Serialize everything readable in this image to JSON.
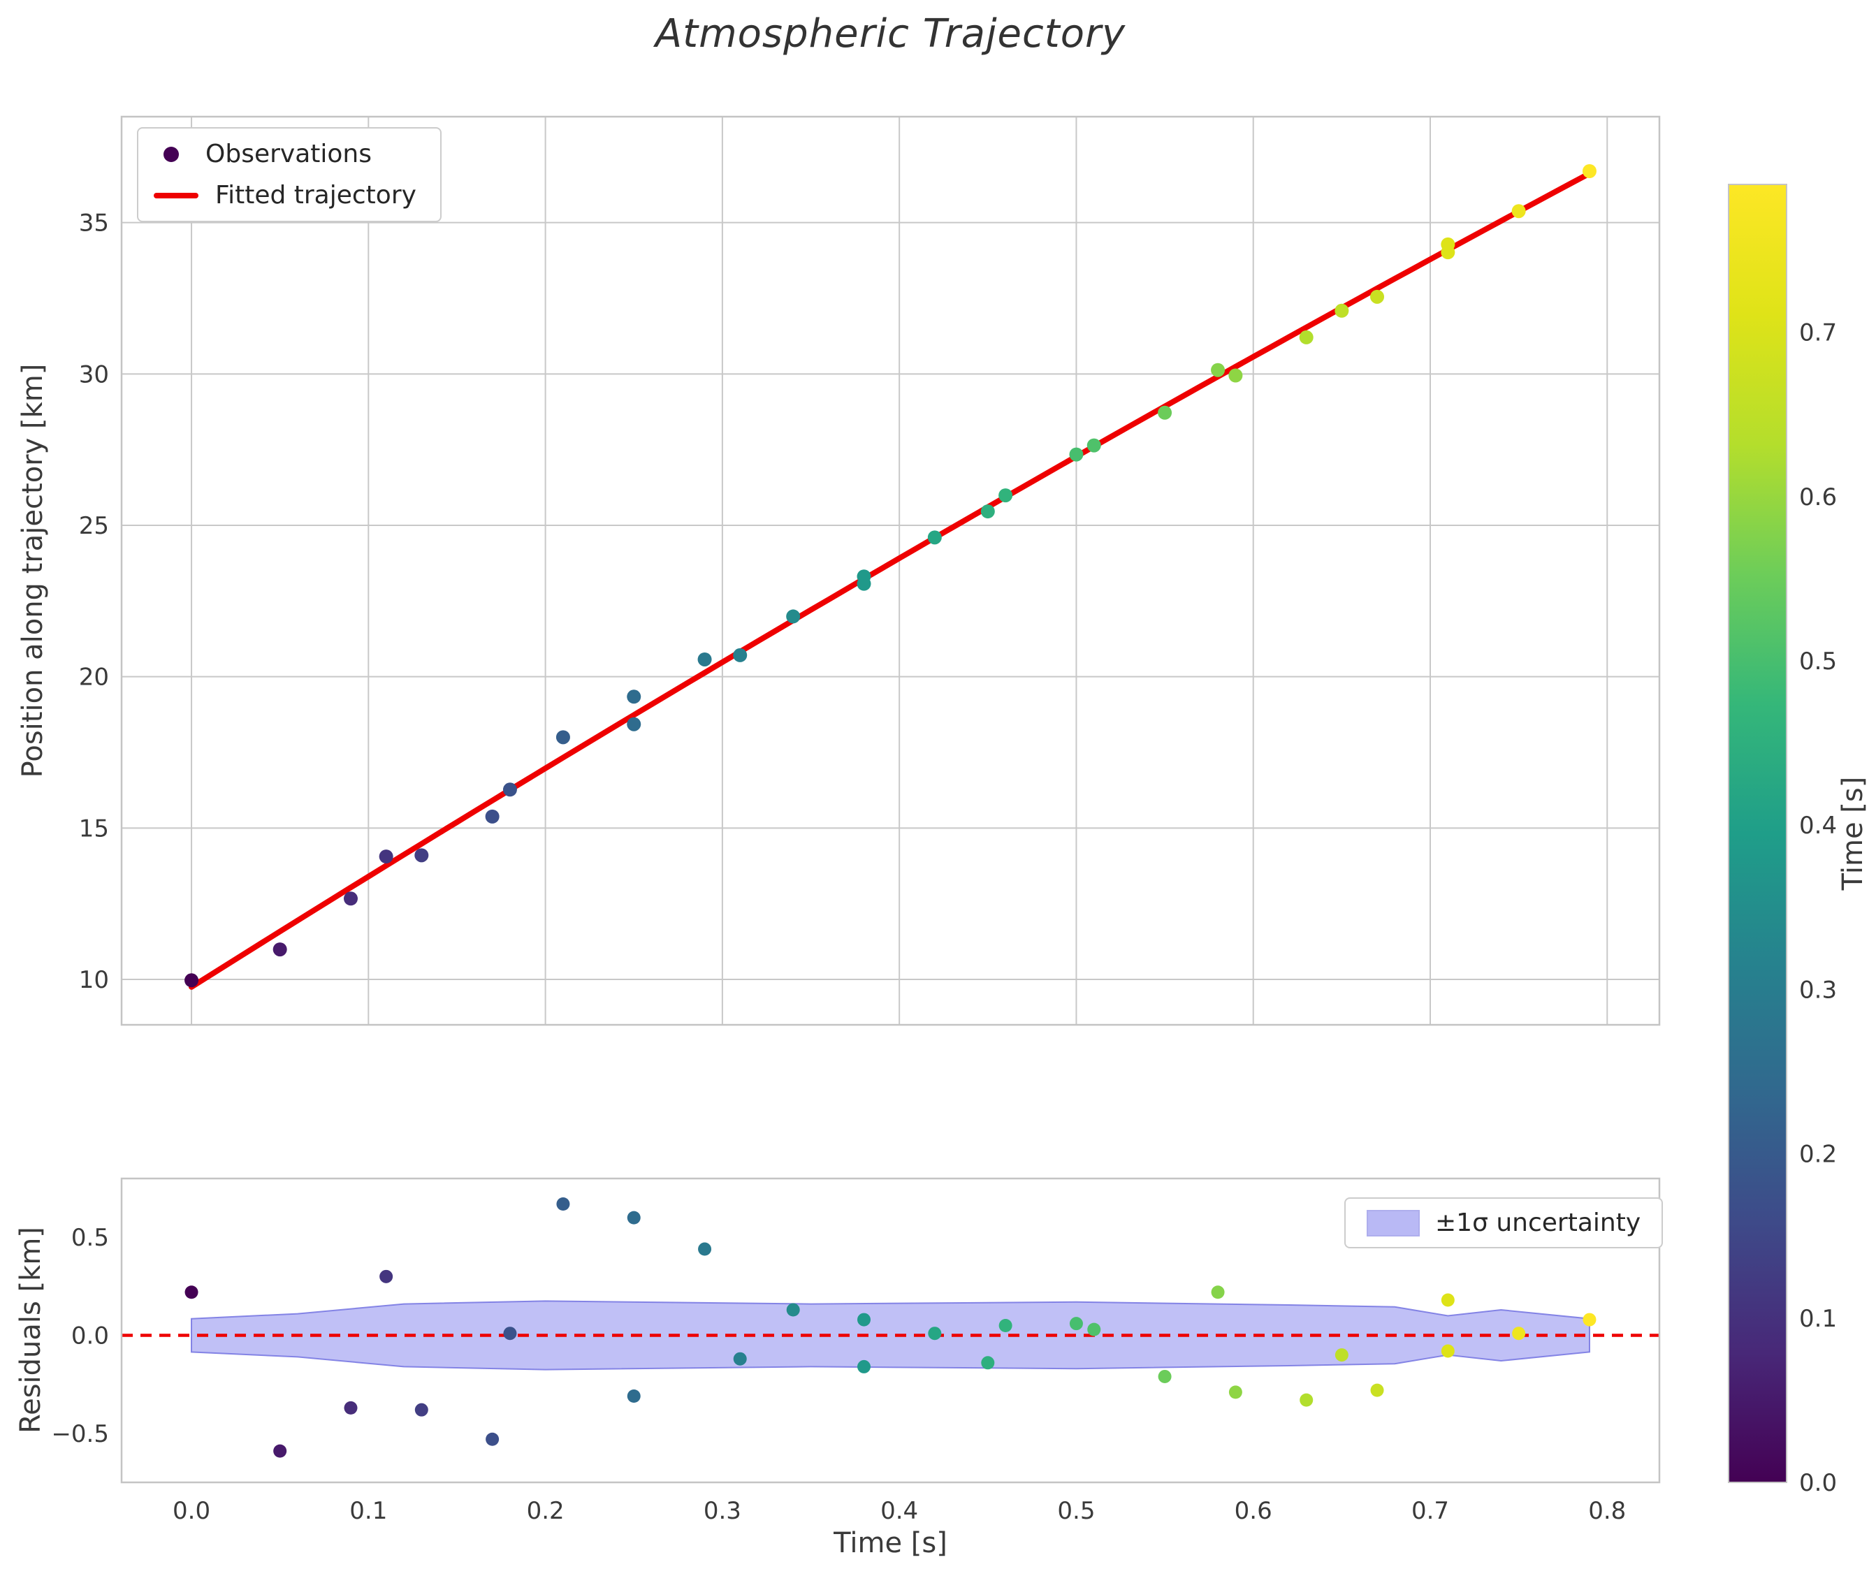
{
  "figure": {
    "title": "Atmospheric Trajectory"
  },
  "chart_data": {
    "type": "scatter",
    "title": "Atmospheric Trajectory",
    "xlabel": "Time [s]",
    "ylabel_main": "Position along trajectory [km]",
    "ylabel_residual": "Residuals [km]",
    "colorbar_label": "Time [s]",
    "series": {
      "observations": {
        "name": "Observations",
        "t": [
          0.0,
          0.05,
          0.09,
          0.11,
          0.13,
          0.17,
          0.18,
          0.21,
          0.25,
          0.25,
          0.29,
          0.31,
          0.34,
          0.38,
          0.38,
          0.42,
          0.45,
          0.46,
          0.5,
          0.51,
          0.55,
          0.58,
          0.59,
          0.63,
          0.65,
          0.67,
          0.71,
          0.71,
          0.75,
          0.79
        ],
        "position": [
          9.97,
          10.99,
          12.67,
          14.06,
          14.1,
          15.38,
          16.27,
          18.0,
          19.34,
          18.43,
          20.57,
          20.71,
          21.99,
          23.31,
          23.07,
          24.6,
          25.46,
          25.99,
          27.34,
          27.64,
          28.72,
          30.13,
          29.95,
          31.21,
          32.09,
          32.55,
          34.28,
          34.02,
          35.38,
          36.7
        ]
      },
      "residuals": {
        "values": [
          0.22,
          -0.59,
          -0.37,
          0.3,
          -0.38,
          -0.53,
          0.01,
          0.67,
          0.6,
          -0.31,
          0.44,
          -0.12,
          0.13,
          0.08,
          -0.16,
          0.01,
          -0.14,
          0.05,
          0.06,
          0.03,
          -0.21,
          0.22,
          -0.29,
          -0.33,
          -0.1,
          -0.28,
          0.18,
          -0.08,
          0.01,
          0.08
        ]
      },
      "fit": {
        "name": "Fitted trajectory",
        "intercept": 9.75,
        "linear": 36.83,
        "quadratic": -3.56,
        "t_start": 0.0,
        "t_end": 0.79
      },
      "uncertainty_band": {
        "name": "±1σ uncertainty",
        "t": [
          0.0,
          0.06,
          0.12,
          0.2,
          0.35,
          0.5,
          0.62,
          0.68,
          0.71,
          0.74,
          0.79
        ],
        "halfwidth": [
          0.085,
          0.11,
          0.16,
          0.175,
          0.16,
          0.17,
          0.155,
          0.145,
          0.1,
          0.13,
          0.085
        ]
      }
    },
    "axes": {
      "x": {
        "lim": [
          -0.0395,
          0.8295
        ],
        "tick_values": [
          0.0,
          0.1,
          0.2,
          0.3,
          0.4,
          0.5,
          0.6,
          0.7,
          0.8
        ],
        "tick_labels": [
          "0.0",
          "0.1",
          "0.2",
          "0.3",
          "0.4",
          "0.5",
          "0.6",
          "0.7",
          "0.8"
        ]
      },
      "main_y": {
        "lim": [
          8.5,
          38.5
        ],
        "tick_values": [
          10,
          15,
          20,
          25,
          30,
          35
        ],
        "tick_labels": [
          "10",
          "15",
          "20",
          "25",
          "30",
          "35"
        ]
      },
      "residual_y": {
        "lim": [
          -0.75,
          0.8
        ],
        "tick_values": [
          -0.5,
          0.0,
          0.5
        ],
        "tick_labels": [
          "−0.5",
          "0.0",
          "0.5"
        ]
      },
      "colorbar": {
        "lim": [
          0.0,
          0.79
        ],
        "tick_values": [
          0.0,
          0.1,
          0.2,
          0.3,
          0.4,
          0.5,
          0.6,
          0.7
        ],
        "tick_labels": [
          "0.0",
          "0.1",
          "0.2",
          "0.3",
          "0.4",
          "0.5",
          "0.6",
          "0.7"
        ]
      }
    },
    "colors": {
      "fit_line": "#ee0000",
      "zero_line": "#ee0000",
      "band_fill": "#8181ee",
      "band_fill_alpha": 0.5,
      "band_edge": "#6d6de0",
      "grid": "#c8c8c8",
      "spine": "#c4c4c4",
      "tick_text": "#3a3a3a",
      "viridis_stops": [
        [
          0.0,
          "#440154"
        ],
        [
          0.1,
          "#482878"
        ],
        [
          0.2,
          "#3e4a89"
        ],
        [
          0.3,
          "#31688e"
        ],
        [
          0.4,
          "#26828e"
        ],
        [
          0.5,
          "#1f9e89"
        ],
        [
          0.6,
          "#35b779"
        ],
        [
          0.7,
          "#6dcd59"
        ],
        [
          0.8,
          "#b4de2c"
        ],
        [
          0.9,
          "#dfe318"
        ],
        [
          1.0,
          "#fde725"
        ]
      ]
    }
  }
}
